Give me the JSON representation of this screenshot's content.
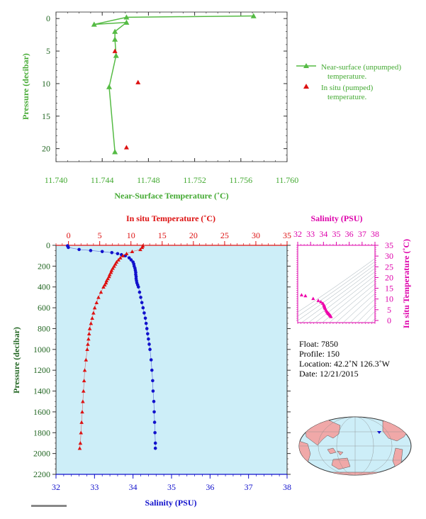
{
  "chart_data": [
    {
      "id": "near_surface",
      "type": "line",
      "xlabel": "Near-Surface Temperature (˚C)",
      "ylabel": "Pressure (decibar)",
      "xlim": [
        11.74,
        11.76
      ],
      "ylim": [
        22,
        -1
      ],
      "xticks": [
        "11.740",
        "11.744",
        "11.748",
        "11.752",
        "11.756",
        "11.760"
      ],
      "xtick_values": [
        11.74,
        11.744,
        11.748,
        11.752,
        11.756,
        11.76
      ],
      "yticks": [
        "0",
        "5",
        "10",
        "15",
        "20"
      ],
      "ytick_values": [
        0,
        5,
        10,
        15,
        20
      ],
      "series": [
        {
          "name": "Near-surface (unpumped) temperature.",
          "color": "#55bb44",
          "marker": "triangle",
          "x": [
            11.7571,
            11.7461,
            11.7433,
            11.7461,
            11.7451,
            11.7451,
            11.7452,
            11.7446,
            11.7451
          ],
          "y": [
            -0.4,
            -0.2,
            0.9,
            0.6,
            2.0,
            3.2,
            5.7,
            10.5,
            20.5
          ]
        },
        {
          "name": "In situ (pumped) temperature.",
          "color": "#dd1111",
          "marker": "triangle",
          "x": [
            11.7451,
            11.7471,
            11.7461
          ],
          "y": [
            5.0,
            9.8,
            19.8
          ]
        }
      ],
      "legend": [
        {
          "line1": "Near-surface (unpumped)",
          "line2": "temperature."
        },
        {
          "line1": "In situ (pumped)",
          "line2": "temperature."
        }
      ]
    },
    {
      "id": "profile",
      "type": "scatter",
      "top_xlabel": "In situ Temperature (˚C)",
      "bottom_xlabel": "Salinity (PSU)",
      "ylabel": "Pressure (decibar)",
      "temp_xlim": [
        -2,
        35
      ],
      "sal_xlim": [
        32,
        38
      ],
      "ylim": [
        2200,
        0
      ],
      "temp_ticks": [
        "0",
        "5",
        "10",
        "15",
        "20",
        "25",
        "30",
        "35"
      ],
      "temp_tick_values": [
        0,
        5,
        10,
        15,
        20,
        25,
        30,
        35
      ],
      "sal_ticks": [
        "32",
        "33",
        "34",
        "35",
        "36",
        "37",
        "38"
      ],
      "sal_tick_values": [
        32,
        33,
        34,
        35,
        36,
        37,
        38
      ],
      "y_ticks": [
        "0",
        "200",
        "400",
        "600",
        "800",
        "1000",
        "1200",
        "1400",
        "1600",
        "1800",
        "2000",
        "2200"
      ],
      "y_tick_values": [
        0,
        200,
        400,
        600,
        800,
        1000,
        1200,
        1400,
        1600,
        1800,
        2000,
        2200
      ],
      "temperature": {
        "color": "#dd1111",
        "pressure": [
          5,
          20,
          40,
          60,
          80,
          100,
          120,
          140,
          160,
          180,
          200,
          220,
          240,
          260,
          280,
          300,
          320,
          340,
          360,
          380,
          400,
          450,
          500,
          550,
          600,
          650,
          700,
          750,
          800,
          850,
          900,
          950,
          1000,
          1100,
          1200,
          1300,
          1400,
          1500,
          1600,
          1700,
          1800,
          1900,
          1950
        ],
        "values": [
          11.9,
          11.8,
          11.5,
          10.2,
          9.3,
          8.7,
          8.3,
          8.0,
          7.7,
          7.5,
          7.3,
          7.1,
          6.9,
          6.8,
          6.6,
          6.5,
          6.3,
          6.1,
          6.0,
          5.8,
          5.6,
          5.2,
          4.8,
          4.5,
          4.2,
          4.0,
          3.8,
          3.6,
          3.4,
          3.3,
          3.2,
          3.1,
          3.0,
          2.8,
          2.6,
          2.5,
          2.4,
          2.3,
          2.2,
          2.1,
          2.0,
          1.9,
          1.8
        ]
      },
      "salinity": {
        "color": "#1111cc",
        "pressure": [
          5,
          20,
          40,
          50,
          60,
          70,
          80,
          90,
          100,
          120,
          140,
          160,
          180,
          200,
          220,
          240,
          260,
          280,
          300,
          320,
          340,
          360,
          380,
          400,
          450,
          500,
          550,
          600,
          650,
          700,
          750,
          800,
          850,
          900,
          950,
          1000,
          1100,
          1200,
          1300,
          1400,
          1500,
          1600,
          1700,
          1800,
          1900,
          1950
        ],
        "values": [
          32.3,
          32.32,
          32.6,
          32.9,
          33.2,
          33.45,
          33.6,
          33.7,
          33.8,
          33.9,
          33.95,
          34.0,
          34.02,
          34.03,
          34.05,
          34.06,
          34.07,
          34.07,
          34.08,
          34.08,
          34.09,
          34.1,
          34.12,
          34.14,
          34.17,
          34.2,
          34.23,
          34.26,
          34.29,
          34.32,
          34.34,
          34.36,
          34.38,
          34.4,
          34.42,
          34.44,
          34.47,
          34.49,
          34.51,
          34.52,
          34.54,
          34.55,
          34.56,
          34.57,
          34.58,
          34.58
        ]
      }
    },
    {
      "id": "ts_diagram",
      "type": "scatter",
      "xlabel": "Salinity (PSU)",
      "ylabel": "In situ Temperature (˚C)",
      "xlim": [
        32,
        38
      ],
      "ylim": [
        -1,
        35
      ],
      "xticks": [
        "32",
        "33",
        "34",
        "35",
        "36",
        "37",
        "38"
      ],
      "xtick_values": [
        32,
        33,
        34,
        35,
        36,
        37,
        38
      ],
      "yticks": [
        "0",
        "5",
        "10",
        "15",
        "20",
        "25",
        "30",
        "35"
      ],
      "ytick_values": [
        0,
        5,
        10,
        15,
        20,
        25,
        30,
        35
      ],
      "color": "#ee00aa",
      "salinity": [
        32.3,
        32.6,
        33.2,
        33.6,
        33.8,
        33.95,
        34.03,
        34.06,
        34.08,
        34.1,
        34.14,
        34.2,
        34.26,
        34.32,
        34.36,
        34.4,
        34.44,
        34.49,
        34.52,
        34.55,
        34.58
      ],
      "temperature": [
        11.9,
        11.5,
        10.2,
        9.3,
        8.7,
        8.0,
        7.3,
        6.9,
        6.5,
        6.0,
        5.6,
        4.8,
        4.2,
        3.8,
        3.4,
        3.2,
        3.0,
        2.6,
        2.4,
        2.2,
        1.8
      ]
    }
  ],
  "float_info": {
    "float": "Float:  7850",
    "profile": "Profile:  150",
    "location": "Location:  42.2˚N  126.3˚W",
    "date": "Date:  12/21/2015"
  },
  "colors": {
    "green": "#44aa33",
    "red": "#dd1111",
    "blue": "#1111cc",
    "magenta": "#dd00aa",
    "plot_bg": "#cdeef8",
    "land": "#f0a8a8",
    "ocean": "#cdeef8"
  }
}
